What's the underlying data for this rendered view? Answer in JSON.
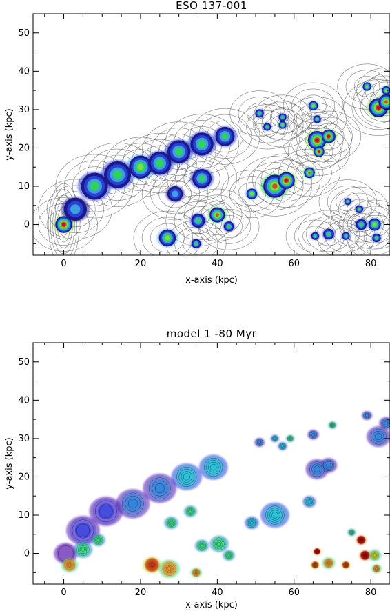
{
  "chart_data": [
    {
      "type": "scatter",
      "title": "ESO 137-001",
      "xlabel": "x-axis (kpc)",
      "ylabel": "y-axis (kpc)",
      "xlim": [
        -8,
        85
      ],
      "ylim": [
        -8,
        55
      ],
      "xticks": [
        0,
        20,
        40,
        60,
        80
      ],
      "yticks": [
        0,
        10,
        20,
        30,
        40,
        50
      ],
      "colormap": [
        "#1a1a8c",
        "#2a3fd6",
        "#3aa0e0",
        "#2fd35a",
        "#7ae04a",
        "#d84a2a",
        "#b01818"
      ],
      "contour_color": "#555555",
      "blobs": [
        {
          "x": 0,
          "y": 0,
          "r": 2.2,
          "level": 6
        },
        {
          "x": 3,
          "y": 4,
          "r": 3,
          "level": 2
        },
        {
          "x": 8,
          "y": 10,
          "r": 3.5,
          "level": 3
        },
        {
          "x": 14,
          "y": 13,
          "r": 3.5,
          "level": 3
        },
        {
          "x": 20,
          "y": 15,
          "r": 3,
          "level": 4
        },
        {
          "x": 25,
          "y": 16,
          "r": 3,
          "level": 3
        },
        {
          "x": 30,
          "y": 19,
          "r": 3,
          "level": 3
        },
        {
          "x": 36,
          "y": 21,
          "r": 3,
          "level": 3
        },
        {
          "x": 42,
          "y": 23,
          "r": 2.5,
          "level": 3
        },
        {
          "x": 29,
          "y": 8,
          "r": 2,
          "level": 2
        },
        {
          "x": 36,
          "y": 12,
          "r": 2.5,
          "level": 3
        },
        {
          "x": 35,
          "y": 1,
          "r": 1.8,
          "level": 3
        },
        {
          "x": 40,
          "y": 2.5,
          "r": 2,
          "level": 5
        },
        {
          "x": 43,
          "y": -0.5,
          "r": 1.3,
          "level": 3
        },
        {
          "x": 27,
          "y": -3.5,
          "r": 2.2,
          "level": 4
        },
        {
          "x": 34.5,
          "y": -5,
          "r": 1.2,
          "level": 3
        },
        {
          "x": 49,
          "y": 8,
          "r": 1.4,
          "level": 4
        },
        {
          "x": 55,
          "y": 10,
          "r": 3,
          "level": 5
        },
        {
          "x": 58,
          "y": 11.5,
          "r": 2.2,
          "level": 6
        },
        {
          "x": 64,
          "y": 13.5,
          "r": 1.4,
          "level": 5
        },
        {
          "x": 66,
          "y": 22,
          "r": 2.4,
          "level": 6
        },
        {
          "x": 69,
          "y": 23,
          "r": 1.8,
          "level": 6
        },
        {
          "x": 66.5,
          "y": 19,
          "r": 1.4,
          "level": 6
        },
        {
          "x": 65,
          "y": 31,
          "r": 1.2,
          "level": 4
        },
        {
          "x": 66,
          "y": 27.5,
          "r": 1,
          "level": 3
        },
        {
          "x": 57,
          "y": 28,
          "r": 1,
          "level": 3
        },
        {
          "x": 51,
          "y": 29,
          "r": 1.1,
          "level": 3
        },
        {
          "x": 53,
          "y": 25.5,
          "r": 1,
          "level": 3
        },
        {
          "x": 57,
          "y": 26,
          "r": 1,
          "level": 4
        },
        {
          "x": 79,
          "y": 36,
          "r": 1.1,
          "level": 4
        },
        {
          "x": 82,
          "y": 30.5,
          "r": 2.5,
          "level": 6
        },
        {
          "x": 84,
          "y": 32,
          "r": 2,
          "level": 5
        },
        {
          "x": 84,
          "y": 35,
          "r": 1.1,
          "level": 4
        },
        {
          "x": 77.5,
          "y": 0,
          "r": 1.4,
          "level": 3
        },
        {
          "x": 81,
          "y": 0,
          "r": 1.6,
          "level": 4
        },
        {
          "x": 81.5,
          "y": -3.5,
          "r": 1.1,
          "level": 3
        },
        {
          "x": 69,
          "y": -2.5,
          "r": 1.4,
          "level": 3
        },
        {
          "x": 65.5,
          "y": -3,
          "r": 1,
          "level": 3
        },
        {
          "x": 73.5,
          "y": -3,
          "r": 1,
          "level": 3
        },
        {
          "x": 77,
          "y": 4,
          "r": 1,
          "level": 3
        },
        {
          "x": 74,
          "y": 6,
          "r": 0.9,
          "level": 3
        }
      ]
    },
    {
      "type": "scatter",
      "title": "model 1    -80 Myr",
      "xlabel": "x-axis (kpc)",
      "ylabel": "y-axis (kpc)",
      "xlim": [
        -8,
        85
      ],
      "ylim": [
        -8,
        55
      ],
      "xticks": [
        0,
        20,
        40,
        60,
        80
      ],
      "yticks": [
        0,
        10,
        20,
        30,
        40,
        50
      ],
      "colormap": [
        "#5a18b0",
        "#2e3fe0",
        "#2f86dc",
        "#28c2d8",
        "#3fe08a",
        "#c8e03a",
        "#f0a23a",
        "#e04a1a",
        "#c01010"
      ],
      "contour_color": "#000000",
      "blobs": [
        {
          "x": 0.5,
          "y": 0,
          "r": 2.5,
          "level": 0
        },
        {
          "x": 1.5,
          "y": -3,
          "r": 1.8,
          "level": 6
        },
        {
          "x": 5,
          "y": 6,
          "r": 3.5,
          "level": 1
        },
        {
          "x": 11,
          "y": 11,
          "r": 3.5,
          "level": 1
        },
        {
          "x": 18,
          "y": 13,
          "r": 3.5,
          "level": 2
        },
        {
          "x": 25,
          "y": 17,
          "r": 3.5,
          "level": 2
        },
        {
          "x": 32,
          "y": 20,
          "r": 3.2,
          "level": 3
        },
        {
          "x": 39,
          "y": 22.5,
          "r": 3,
          "level": 3
        },
        {
          "x": 5,
          "y": 1,
          "r": 2,
          "level": 4
        },
        {
          "x": 9,
          "y": 3.5,
          "r": 1.5,
          "level": 4
        },
        {
          "x": 28,
          "y": 8,
          "r": 1.5,
          "level": 4
        },
        {
          "x": 33,
          "y": 11,
          "r": 1.4,
          "level": 4
        },
        {
          "x": 36,
          "y": 2,
          "r": 1.5,
          "level": 4
        },
        {
          "x": 40.5,
          "y": 2.5,
          "r": 2,
          "level": 4
        },
        {
          "x": 43,
          "y": -0.5,
          "r": 1.3,
          "level": 4
        },
        {
          "x": 23,
          "y": -3,
          "r": 2,
          "level": 7
        },
        {
          "x": 27.5,
          "y": -4,
          "r": 2.2,
          "level": 6
        },
        {
          "x": 34.5,
          "y": -5,
          "r": 1.2,
          "level": 6
        },
        {
          "x": 49,
          "y": 8,
          "r": 1.5,
          "level": 3
        },
        {
          "x": 55,
          "y": 10,
          "r": 3,
          "level": 3
        },
        {
          "x": 64,
          "y": 13.5,
          "r": 1.4,
          "level": 3
        },
        {
          "x": 66,
          "y": 22,
          "r": 2.4,
          "level": 2
        },
        {
          "x": 69,
          "y": 23,
          "r": 1.8,
          "level": 2
        },
        {
          "x": 65,
          "y": 31,
          "r": 1.2,
          "level": 2
        },
        {
          "x": 57,
          "y": 28,
          "r": 1,
          "level": 3
        },
        {
          "x": 51,
          "y": 29,
          "r": 1.1,
          "level": 2
        },
        {
          "x": 59,
          "y": 30,
          "r": 0.9,
          "level": 4
        },
        {
          "x": 55,
          "y": 30,
          "r": 0.9,
          "level": 3
        },
        {
          "x": 79,
          "y": 36,
          "r": 1.1,
          "level": 2
        },
        {
          "x": 82,
          "y": 30.5,
          "r": 2.5,
          "level": 2
        },
        {
          "x": 84,
          "y": 34,
          "r": 1.5,
          "level": 2
        },
        {
          "x": 77.5,
          "y": 3.5,
          "r": 1.2,
          "level": 8
        },
        {
          "x": 78.5,
          "y": -0.5,
          "r": 1.3,
          "level": 8
        },
        {
          "x": 81,
          "y": -0.5,
          "r": 1.4,
          "level": 5
        },
        {
          "x": 81.5,
          "y": -4,
          "r": 1.1,
          "level": 6
        },
        {
          "x": 69,
          "y": -2.5,
          "r": 1.4,
          "level": 6
        },
        {
          "x": 65.5,
          "y": -3,
          "r": 1,
          "level": 7
        },
        {
          "x": 73.5,
          "y": -3,
          "r": 1,
          "level": 7
        },
        {
          "x": 75,
          "y": 5.5,
          "r": 0.9,
          "level": 4
        },
        {
          "x": 66,
          "y": 0.5,
          "r": 0.9,
          "level": 8
        },
        {
          "x": 70,
          "y": 33.5,
          "r": 0.9,
          "level": 4
        }
      ]
    }
  ]
}
